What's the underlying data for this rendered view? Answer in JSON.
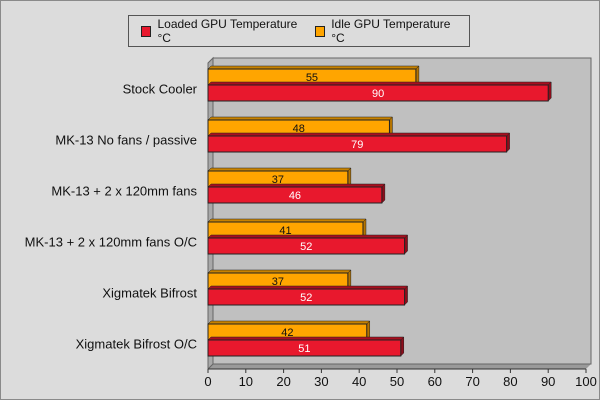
{
  "chart_data": {
    "type": "bar",
    "orientation": "horizontal",
    "categories": [
      "Stock Cooler",
      "MK-13 No fans / passive",
      "MK-13 + 2 x 120mm fans",
      "MK-13 + 2 x 120mm fans O/C",
      "Xigmatek Bifrost",
      "Xigmatek Bifrost O/C"
    ],
    "series": [
      {
        "name": "Idle GPU Temperature °C",
        "color": "#ffa500",
        "values": [
          55,
          48,
          37,
          41,
          37,
          42
        ]
      },
      {
        "name": "Loaded GPU Temperature °C",
        "color": "#e8182d",
        "values": [
          90,
          79,
          46,
          52,
          52,
          51
        ]
      }
    ],
    "legend_order": [
      1,
      0
    ],
    "legend_placement": "top",
    "xlim": [
      0,
      100
    ],
    "xticks": [
      0,
      10,
      20,
      30,
      40,
      50,
      60,
      70,
      80,
      90,
      100
    ],
    "grid": false,
    "plot_background": "#c0c0c0"
  }
}
